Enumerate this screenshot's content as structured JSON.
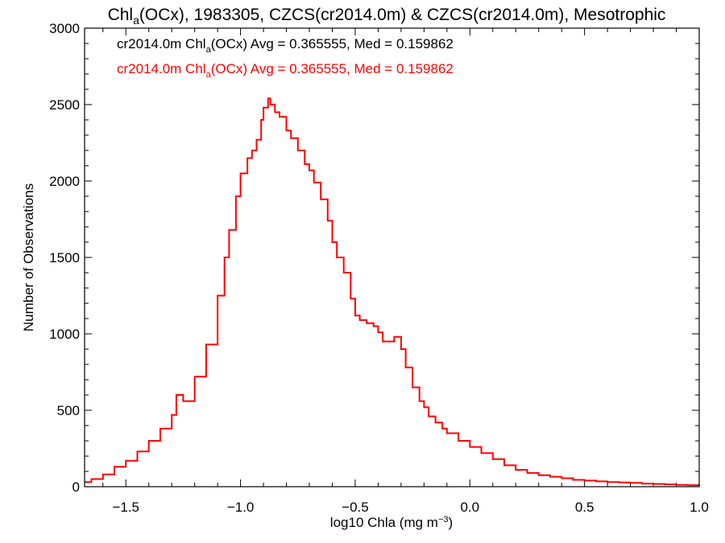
{
  "chart_data": {
    "type": "line",
    "title": {
      "pre": "Chl",
      "sub": "a",
      "post": "(OCx), 1983305, CZCS(cr2014.0m) & CZCS(cr2014.0m), Mesotrophic"
    },
    "xlabel": {
      "pre": "log10 Chla (mg m",
      "sup": "−3",
      "post": ")"
    },
    "ylabel": "Number of Observations",
    "xlim": [
      -1.68,
      1.0
    ],
    "ylim": [
      0,
      3000
    ],
    "xticks": [
      {
        "v": -1.5,
        "label": "−1.5"
      },
      {
        "v": -1.0,
        "label": "−1.0"
      },
      {
        "v": -0.5,
        "label": "−0.5"
      },
      {
        "v": 0.0,
        "label": "0.0"
      },
      {
        "v": 0.5,
        "label": "0.5"
      },
      {
        "v": 1.0,
        "label": "1.0"
      }
    ],
    "yticks": [
      {
        "v": 0,
        "label": "0"
      },
      {
        "v": 500,
        "label": "500"
      },
      {
        "v": 1000,
        "label": "1000"
      },
      {
        "v": 1500,
        "label": "1500"
      },
      {
        "v": 2000,
        "label": "2000"
      },
      {
        "v": 2500,
        "label": "2500"
      },
      {
        "v": 3000,
        "label": "3000"
      }
    ],
    "grid": false,
    "annotations": [
      {
        "pre": "cr2014.0m Chl",
        "sub": "a",
        "post": "(OCx) Avg = 0.365555, Med = 0.159862",
        "color": "#000000"
      },
      {
        "pre": "cr2014.0m Chl",
        "sub": "a",
        "post": "(OCx) Avg = 0.365555, Med = 0.159862",
        "color": "#ff0000"
      }
    ],
    "series": [
      {
        "color": "#ff0000",
        "style": "step",
        "points": [
          [
            -1.68,
            30
          ],
          [
            -1.65,
            50
          ],
          [
            -1.6,
            80
          ],
          [
            -1.55,
            130
          ],
          [
            -1.5,
            170
          ],
          [
            -1.45,
            230
          ],
          [
            -1.4,
            300
          ],
          [
            -1.35,
            380
          ],
          [
            -1.3,
            470
          ],
          [
            -1.28,
            600
          ],
          [
            -1.25,
            560
          ],
          [
            -1.2,
            720
          ],
          [
            -1.15,
            930
          ],
          [
            -1.1,
            1250
          ],
          [
            -1.07,
            1500
          ],
          [
            -1.05,
            1680
          ],
          [
            -1.02,
            1900
          ],
          [
            -1.0,
            2050
          ],
          [
            -0.97,
            2150
          ],
          [
            -0.95,
            2200
          ],
          [
            -0.93,
            2270
          ],
          [
            -0.91,
            2400
          ],
          [
            -0.9,
            2480
          ],
          [
            -0.88,
            2540
          ],
          [
            -0.87,
            2500
          ],
          [
            -0.85,
            2450
          ],
          [
            -0.83,
            2420
          ],
          [
            -0.8,
            2330
          ],
          [
            -0.78,
            2280
          ],
          [
            -0.75,
            2200
          ],
          [
            -0.72,
            2110
          ],
          [
            -0.7,
            2070
          ],
          [
            -0.68,
            1990
          ],
          [
            -0.65,
            1880
          ],
          [
            -0.62,
            1740
          ],
          [
            -0.6,
            1600
          ],
          [
            -0.58,
            1500
          ],
          [
            -0.55,
            1400
          ],
          [
            -0.52,
            1230
          ],
          [
            -0.5,
            1120
          ],
          [
            -0.48,
            1090
          ],
          [
            -0.45,
            1070
          ],
          [
            -0.42,
            1050
          ],
          [
            -0.4,
            1010
          ],
          [
            -0.38,
            950
          ],
          [
            -0.35,
            950
          ],
          [
            -0.33,
            980
          ],
          [
            -0.3,
            900
          ],
          [
            -0.28,
            780
          ],
          [
            -0.25,
            650
          ],
          [
            -0.22,
            560
          ],
          [
            -0.2,
            520
          ],
          [
            -0.18,
            460
          ],
          [
            -0.15,
            420
          ],
          [
            -0.12,
            380
          ],
          [
            -0.1,
            350
          ],
          [
            -0.05,
            300
          ],
          [
            0.0,
            260
          ],
          [
            0.05,
            220
          ],
          [
            0.1,
            180
          ],
          [
            0.15,
            140
          ],
          [
            0.2,
            110
          ],
          [
            0.25,
            90
          ],
          [
            0.3,
            75
          ],
          [
            0.35,
            65
          ],
          [
            0.4,
            55
          ],
          [
            0.45,
            45
          ],
          [
            0.5,
            40
          ],
          [
            0.55,
            35
          ],
          [
            0.6,
            30
          ],
          [
            0.65,
            28
          ],
          [
            0.7,
            25
          ],
          [
            0.75,
            20
          ],
          [
            0.8,
            18
          ],
          [
            0.85,
            15
          ],
          [
            0.9,
            12
          ],
          [
            0.95,
            10
          ],
          [
            1.0,
            8
          ]
        ]
      }
    ]
  }
}
